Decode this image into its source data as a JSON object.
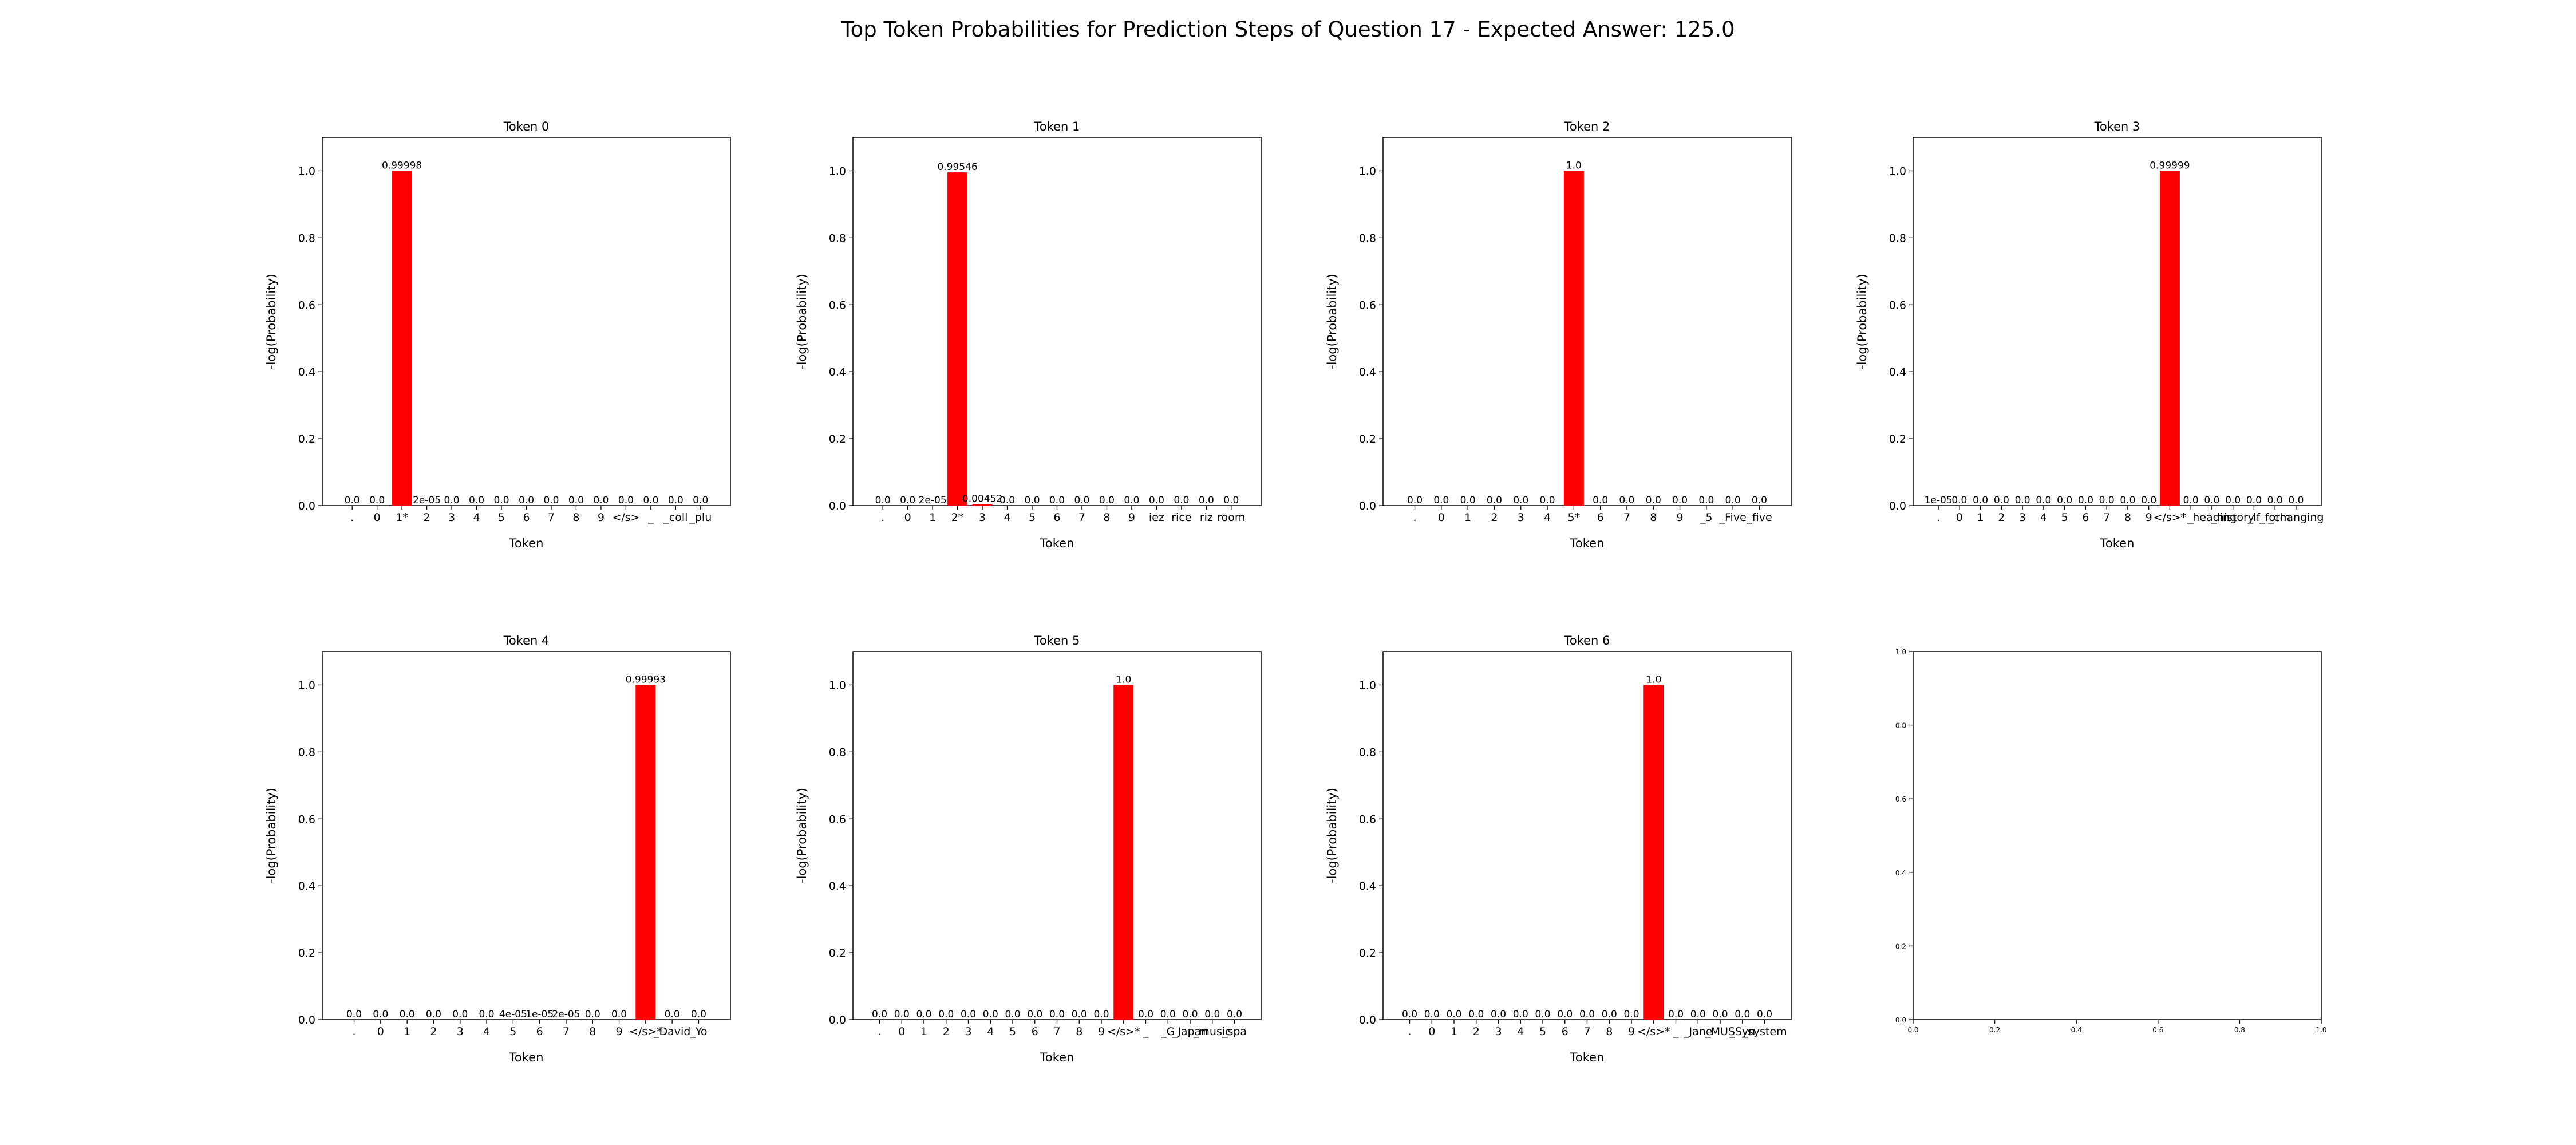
{
  "figure": {
    "title": "Top Token Probabilities for Prediction Steps of Question 17 - Expected Answer: 125.0"
  },
  "chart_data": [
    {
      "type": "bar",
      "title": "Token 0",
      "xlabel": "Token",
      "ylabel": "-log(Probability)",
      "ylim": [
        0,
        1.1
      ],
      "yticks": [
        "0.0",
        "0.2",
        "0.4",
        "0.6",
        "0.8",
        "1.0"
      ],
      "bar_color": "#ff0000",
      "categories": [
        ".",
        "0",
        "1*",
        "2",
        "3",
        "4",
        "5",
        "6",
        "7",
        "8",
        "9",
        "</s>",
        "_",
        "_coll",
        "_plu"
      ],
      "values": [
        0.0,
        0.0,
        0.99998,
        2e-05,
        0.0,
        0.0,
        0.0,
        0.0,
        0.0,
        0.0,
        0.0,
        0.0,
        0.0,
        0.0,
        0.0
      ],
      "labels": [
        "0.0",
        "0.0",
        "0.99998",
        "2e-05",
        "0.0",
        "0.0",
        "0.0",
        "0.0",
        "0.0",
        "0.0",
        "0.0",
        "0.0",
        "0.0",
        "0.0",
        "0.0"
      ]
    },
    {
      "type": "bar",
      "title": "Token 1",
      "xlabel": "Token",
      "ylabel": "-log(Probability)",
      "ylim": [
        0,
        1.1
      ],
      "yticks": [
        "0.0",
        "0.2",
        "0.4",
        "0.6",
        "0.8",
        "1.0"
      ],
      "bar_color": "#ff0000",
      "categories": [
        ".",
        "0",
        "1",
        "2*",
        "3",
        "4",
        "5",
        "6",
        "7",
        "8",
        "9",
        "iez",
        "rice",
        "riz",
        "room"
      ],
      "values": [
        0.0,
        0.0,
        2e-05,
        0.99546,
        0.00452,
        0.0,
        0.0,
        0.0,
        0.0,
        0.0,
        0.0,
        0.0,
        0.0,
        0.0,
        0.0
      ],
      "labels": [
        "0.0",
        "0.0",
        "2e-05",
        "0.99546",
        "0.00452",
        "0.0",
        "0.0",
        "0.0",
        "0.0",
        "0.0",
        "0.0",
        "0.0",
        "0.0",
        "0.0",
        "0.0"
      ]
    },
    {
      "type": "bar",
      "title": "Token 2",
      "xlabel": "Token",
      "ylabel": "-log(Probability)",
      "ylim": [
        0,
        1.1
      ],
      "yticks": [
        "0.0",
        "0.2",
        "0.4",
        "0.6",
        "0.8",
        "1.0"
      ],
      "bar_color": "#ff0000",
      "categories": [
        ".",
        "0",
        "1",
        "2",
        "3",
        "4",
        "5*",
        "6",
        "7",
        "8",
        "9",
        "_5",
        "_Five",
        "_five"
      ],
      "values": [
        0.0,
        0.0,
        0.0,
        0.0,
        0.0,
        0.0,
        1.0,
        0.0,
        0.0,
        0.0,
        0.0,
        0.0,
        0.0,
        0.0
      ],
      "labels": [
        "0.0",
        "0.0",
        "0.0",
        "0.0",
        "0.0",
        "0.0",
        "1.0",
        "0.0",
        "0.0",
        "0.0",
        "0.0",
        "0.0",
        "0.0",
        "0.0"
      ]
    },
    {
      "type": "bar",
      "title": "Token 3",
      "xlabel": "Token",
      "ylabel": "-log(Probability)",
      "ylim": [
        0,
        1.1
      ],
      "yticks": [
        "0.0",
        "0.2",
        "0.4",
        "0.6",
        "0.8",
        "1.0"
      ],
      "bar_color": "#ff0000",
      "categories": [
        ".",
        "0",
        "1",
        "2",
        "3",
        "4",
        "5",
        "6",
        "7",
        "8",
        "9",
        "</s>*",
        "_",
        "_heading",
        "_history",
        "_lf",
        "_form",
        "_changing"
      ],
      "values": [
        1e-05,
        0.0,
        0.0,
        0.0,
        0.0,
        0.0,
        0.0,
        0.0,
        0.0,
        0.0,
        0.0,
        0.99999,
        0.0,
        0.0,
        0.0,
        0.0,
        0.0,
        0.0
      ],
      "labels": [
        "1e-05",
        "0.0",
        "0.0",
        "0.0",
        "0.0",
        "0.0",
        "0.0",
        "0.0",
        "0.0",
        "0.0",
        "0.0",
        "0.99999",
        "0.0",
        "0.0",
        "0.0",
        "0.0",
        "0.0",
        "0.0"
      ]
    },
    {
      "type": "bar",
      "title": "Token 4",
      "xlabel": "Token",
      "ylabel": "-log(Probability)",
      "ylim": [
        0,
        1.1
      ],
      "yticks": [
        "0.0",
        "0.2",
        "0.4",
        "0.6",
        "0.8",
        "1.0"
      ],
      "bar_color": "#ff0000",
      "categories": [
        ".",
        "0",
        "1",
        "2",
        "3",
        "4",
        "5",
        "6",
        "7",
        "8",
        "9",
        "</s>*",
        "_David",
        "_Yo"
      ],
      "values": [
        0.0,
        0.0,
        0.0,
        0.0,
        0.0,
        0.0,
        4e-05,
        1e-05,
        2e-05,
        0.0,
        0.0,
        0.99993,
        0.0,
        0.0
      ],
      "labels": [
        "0.0",
        "0.0",
        "0.0",
        "0.0",
        "0.0",
        "0.0",
        "4e-05",
        "1e-05",
        "2e-05",
        "0.0",
        "0.0",
        "0.99993",
        "0.0",
        "0.0"
      ]
    },
    {
      "type": "bar",
      "title": "Token 5",
      "xlabel": "Token",
      "ylabel": "-log(Probability)",
      "ylim": [
        0,
        1.1
      ],
      "yticks": [
        "0.0",
        "0.2",
        "0.4",
        "0.6",
        "0.8",
        "1.0"
      ],
      "bar_color": "#ff0000",
      "categories": [
        ".",
        "0",
        "1",
        "2",
        "3",
        "4",
        "5",
        "6",
        "7",
        "8",
        "9",
        "</s>*",
        "_",
        "_G",
        "_Japan",
        "_music",
        "_spa"
      ],
      "values": [
        0.0,
        0.0,
        0.0,
        0.0,
        0.0,
        0.0,
        0.0,
        0.0,
        0.0,
        0.0,
        0.0,
        1.0,
        0.0,
        0.0,
        0.0,
        0.0,
        0.0
      ],
      "labels": [
        "0.0",
        "0.0",
        "0.0",
        "0.0",
        "0.0",
        "0.0",
        "0.0",
        "0.0",
        "0.0",
        "0.0",
        "0.0",
        "1.0",
        "0.0",
        "0.0",
        "0.0",
        "0.0",
        "0.0"
      ]
    },
    {
      "type": "bar",
      "title": "Token 6",
      "xlabel": "Token",
      "ylabel": "-log(Probability)",
      "ylim": [
        0,
        1.1
      ],
      "yticks": [
        "0.0",
        "0.2",
        "0.4",
        "0.6",
        "0.8",
        "1.0"
      ],
      "bar_color": "#ff0000",
      "categories": [
        ".",
        "0",
        "1",
        "2",
        "3",
        "4",
        "5",
        "6",
        "7",
        "8",
        "9",
        "</s>*",
        "_",
        "_Jane",
        "_MUS",
        "_Syn",
        "_system"
      ],
      "values": [
        0.0,
        0.0,
        0.0,
        0.0,
        0.0,
        0.0,
        0.0,
        0.0,
        0.0,
        0.0,
        0.0,
        1.0,
        0.0,
        0.0,
        0.0,
        0.0,
        0.0
      ],
      "labels": [
        "0.0",
        "0.0",
        "0.0",
        "0.0",
        "0.0",
        "0.0",
        "0.0",
        "0.0",
        "0.0",
        "0.0",
        "0.0",
        "1.0",
        "0.0",
        "0.0",
        "0.0",
        "0.0",
        "0.0"
      ]
    },
    {
      "type": "bar",
      "title": "",
      "xlabel": "",
      "ylabel": "",
      "xlim": [
        0,
        1
      ],
      "ylim": [
        0,
        1
      ],
      "xticks": [
        "0.0",
        "0.2",
        "0.4",
        "0.6",
        "0.8",
        "1.0"
      ],
      "yticks": [
        "0.0",
        "0.2",
        "0.4",
        "0.6",
        "0.8",
        "1.0"
      ],
      "categories": [],
      "values": [],
      "labels": []
    }
  ]
}
